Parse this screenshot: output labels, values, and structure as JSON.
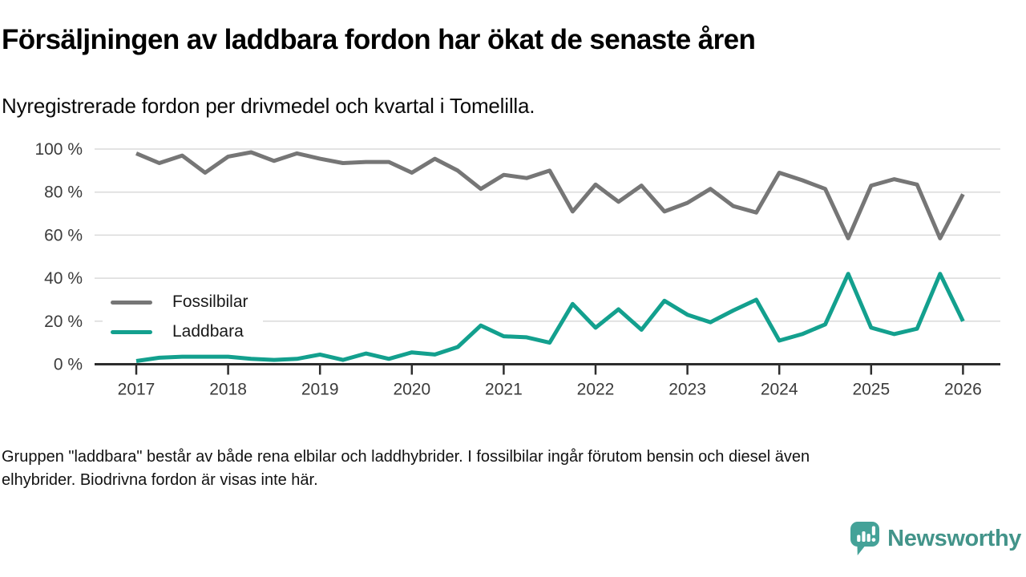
{
  "header": {
    "title": "Försäljningen av laddbara fordon har ökat de senaste åren",
    "subtitle": "Nyregistrerade fordon per drivmedel och kvartal i Tomelilla."
  },
  "chart_data": {
    "type": "line",
    "title": "Försäljningen av laddbara fordon har ökat de senaste åren",
    "subtitle": "Nyregistrerade fordon per drivmedel och kvartal i Tomelilla.",
    "x_unit": "quarter",
    "categories": [
      "2017 Q1",
      "2017 Q2",
      "2017 Q3",
      "2017 Q4",
      "2018 Q1",
      "2018 Q2",
      "2018 Q3",
      "2018 Q4",
      "2019 Q1",
      "2019 Q2",
      "2019 Q3",
      "2019 Q4",
      "2020 Q1",
      "2020 Q2",
      "2020 Q3",
      "2020 Q4",
      "2021 Q1",
      "2021 Q2",
      "2021 Q3",
      "2021 Q4",
      "2022 Q1",
      "2022 Q2",
      "2022 Q3",
      "2022 Q4",
      "2023 Q1",
      "2023 Q2",
      "2023 Q3",
      "2023 Q4",
      "2024 Q1",
      "2024 Q2",
      "2024 Q3",
      "2024 Q4",
      "2025 Q1",
      "2025 Q2",
      "2025 Q3",
      "2025 Q4",
      "2026 Q1"
    ],
    "series": [
      {
        "name": "Fossilbilar",
        "color": "#767676",
        "values": [
          98,
          93.5,
          97,
          89,
          96.5,
          98.5,
          94.5,
          98,
          95.5,
          93.5,
          94,
          94,
          89,
          95.5,
          90,
          81.5,
          88,
          86.5,
          90,
          71,
          83.5,
          75.5,
          83,
          71,
          75,
          81.5,
          73.5,
          70.5,
          89,
          85.5,
          81.5,
          58.5,
          83,
          86,
          83.5,
          58.5,
          79
        ]
      },
      {
        "name": "Laddbara",
        "color": "#13a08e",
        "values": [
          1.5,
          3,
          3.5,
          3.5,
          3.5,
          2.5,
          2,
          2.5,
          4.5,
          2,
          5,
          2.5,
          5.5,
          4.5,
          8,
          18,
          13,
          12.5,
          10,
          28,
          17,
          25.5,
          16,
          29.5,
          23,
          19.5,
          25,
          30,
          11,
          14,
          18.5,
          42,
          17,
          14,
          16.5,
          42,
          20
        ]
      }
    ],
    "ylim": [
      0,
      100
    ],
    "yticks": [
      {
        "value": 0,
        "label": "0 %"
      },
      {
        "value": 20,
        "label": "20 %"
      },
      {
        "value": 40,
        "label": "40 %"
      },
      {
        "value": 60,
        "label": "60 %"
      },
      {
        "value": 80,
        "label": "80 %"
      },
      {
        "value": 100,
        "label": "100 %"
      }
    ],
    "xticks": [
      "2017",
      "2018",
      "2019",
      "2020",
      "2021",
      "2022",
      "2023",
      "2024",
      "2025",
      "2026"
    ],
    "grid": "horizontal",
    "legend_position": "middle-left"
  },
  "legend": {
    "items": [
      {
        "label": "Fossilbilar",
        "color": "#767676"
      },
      {
        "label": "Laddbara",
        "color": "#13a08e"
      }
    ]
  },
  "footer": {
    "note_line1": "Gruppen \"laddbara\" består av både rena elbilar och laddhybrider. I fossilbilar ingår förutom bensin och diesel även",
    "note_line2": "elhybrider. Biodrivna fordon är visas inte här.",
    "brand": "Newsworthy"
  },
  "colors": {
    "fossil_line": "#767676",
    "laddbara_line": "#13a08e",
    "gridline": "#dadada",
    "axis": "#2d2d2d",
    "tick_label": "#3c3c3c",
    "brand_teal": "#44a298"
  }
}
